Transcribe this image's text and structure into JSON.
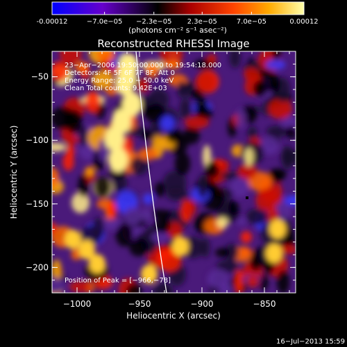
{
  "colorbar": {
    "tick_labels": [
      "-0.00012",
      "−7.0e−05",
      "−2.3e−05",
      "2.3e−05",
      "7.0e−05",
      "0.00012"
    ],
    "tick_values": [
      -0.00012,
      -7e-05,
      -2.3e-05,
      2.3e-05,
      7e-05,
      0.00012
    ],
    "units": "(photons cm⁻² s⁻¹ asec⁻²)",
    "colors": [
      "#0000ff",
      "#6600cc",
      "#000000",
      "#aa0000",
      "#ff4400",
      "#ffaa00",
      "#ffffaa"
    ]
  },
  "image": {
    "title": "Reconstructed RHESSI Image",
    "info_lines": [
      "23−Apr−2006 19:50:00.000 to 19:54:18.000",
      "Detectors: 4F 5F 6F 7F 8F, Att 0",
      "Energy Range: 25.0 − 50.0 keV",
      "Clean    Total counts: 9.42E+03"
    ],
    "peak_label": "Position of Peak = [−966,−78]",
    "xlabel": "Heliocentric X (arcsec)",
    "ylabel": "Heliocentric Y (arcsec)",
    "x_ticks": [
      "−1000",
      "−950",
      "−900",
      "−850"
    ],
    "y_ticks": [
      "−50",
      "−100",
      "−150",
      "−200"
    ],
    "xlim": [
      -1020,
      -825
    ],
    "ylim": [
      -220,
      -30
    ]
  },
  "footer": {
    "date": "16−Jul−2013 15:59"
  }
}
